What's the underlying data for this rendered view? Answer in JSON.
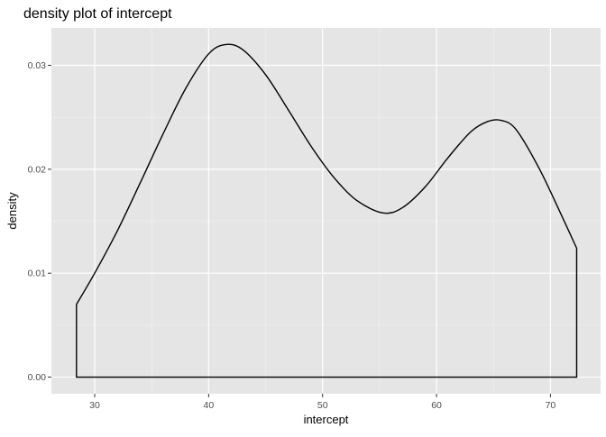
{
  "chart_data": {
    "type": "area",
    "title": "density plot of intercept",
    "xlabel": "intercept",
    "ylabel": "density",
    "xlim": [
      26.2,
      74.4
    ],
    "ylim": [
      -0.0016,
      0.0336
    ],
    "x_ticks": [
      30,
      40,
      50,
      60,
      70
    ],
    "x_tick_labels": [
      "30",
      "40",
      "50",
      "60",
      "70"
    ],
    "y_ticks": [
      0,
      0.01,
      0.02,
      0.03
    ],
    "y_tick_labels": [
      "0.00",
      "0.01",
      "0.02",
      "0.03"
    ],
    "grid": true,
    "fill": "none",
    "line_color": "#000000",
    "panel_background": "#e5e5e5",
    "series": [
      {
        "x": [
          28.4,
          30,
          32,
          34,
          36,
          38,
          40,
          41.5,
          43,
          45,
          47,
          49,
          51,
          53,
          55.3,
          57,
          59,
          61,
          63,
          64.5,
          65.7,
          67,
          69,
          71,
          72.3
        ],
        "y": [
          0.007,
          0.01,
          0.0141,
          0.0187,
          0.0234,
          0.0278,
          0.0311,
          0.032,
          0.0315,
          0.0291,
          0.0257,
          0.0222,
          0.0192,
          0.017,
          0.0158,
          0.0163,
          0.0183,
          0.0211,
          0.0236,
          0.0246,
          0.0247,
          0.0238,
          0.0201,
          0.0155,
          0.0124
        ]
      }
    ]
  }
}
